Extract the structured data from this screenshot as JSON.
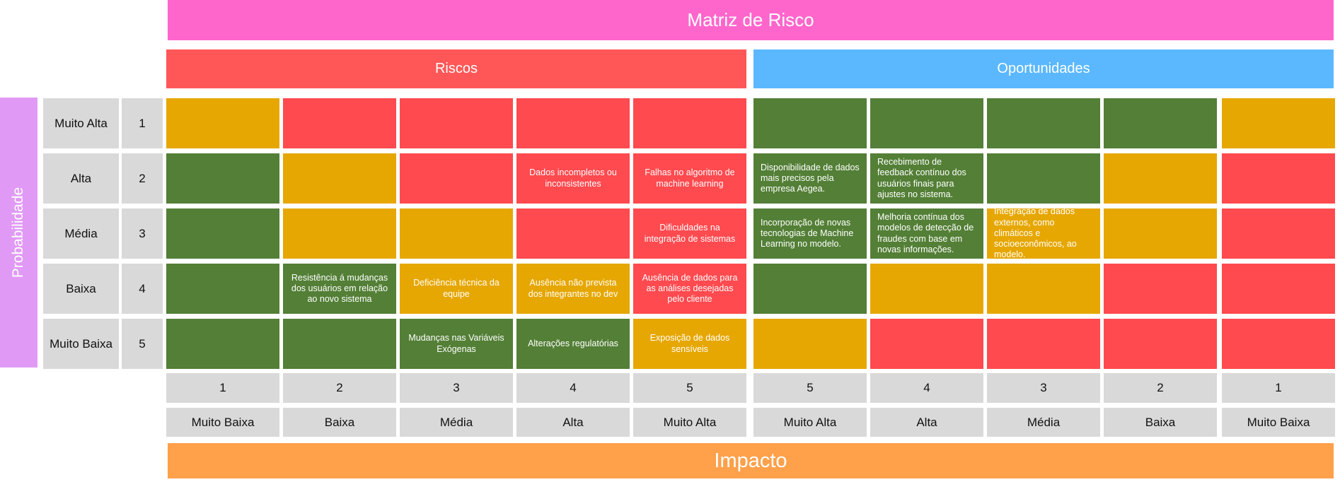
{
  "title": "Matriz de Risco",
  "sections": {
    "riscos": "Riscos",
    "oportunidades": "Oportunidades"
  },
  "axis": {
    "y_label": "Probabilidade",
    "x_label": "Impacto"
  },
  "probability_levels": [
    {
      "label": "Muito Alta",
      "number": "1"
    },
    {
      "label": "Alta",
      "number": "2"
    },
    {
      "label": "Média",
      "number": "3"
    },
    {
      "label": "Baixa",
      "number": "4"
    },
    {
      "label": "Muito Baixa",
      "number": "5"
    }
  ],
  "impact_columns": [
    {
      "number": "1",
      "label": "Muito Baixa"
    },
    {
      "number": "2",
      "label": "Baixa"
    },
    {
      "number": "3",
      "label": "Média"
    },
    {
      "number": "4",
      "label": "Alta"
    },
    {
      "number": "5",
      "label": "Muito Alta"
    },
    {
      "number": "5",
      "label": "Muito Alta"
    },
    {
      "number": "4",
      "label": "Alta"
    },
    {
      "number": "3",
      "label": "Média"
    },
    {
      "number": "2",
      "label": "Baixa"
    },
    {
      "number": "1",
      "label": "Muito Baixa"
    }
  ],
  "colors": {
    "title": "#ff66cc",
    "riscos": "#ff5757",
    "oportunidades": "#5bb8ff",
    "probabilidade": "#e09af5",
    "impacto": "#ffa04a",
    "header_gray": "#d9d9d9",
    "cell_green": "#537f36",
    "cell_yellow": "#e6a703",
    "cell_red": "#ff4a4f"
  },
  "grid": [
    [
      {
        "color": "yellow",
        "text": ""
      },
      {
        "color": "red",
        "text": ""
      },
      {
        "color": "red",
        "text": ""
      },
      {
        "color": "red",
        "text": ""
      },
      {
        "color": "red",
        "text": ""
      },
      {
        "color": "green",
        "text": ""
      },
      {
        "color": "green",
        "text": ""
      },
      {
        "color": "green",
        "text": ""
      },
      {
        "color": "green",
        "text": ""
      },
      {
        "color": "yellow",
        "text": ""
      }
    ],
    [
      {
        "color": "green",
        "text": ""
      },
      {
        "color": "yellow",
        "text": ""
      },
      {
        "color": "red",
        "text": ""
      },
      {
        "color": "red",
        "text": "Dados incompletos ou inconsistentes"
      },
      {
        "color": "red",
        "text": "Falhas no algoritmo de machine learning"
      },
      {
        "color": "green",
        "text": "Disponibilidade de dados mais precisos pela empresa Aegea."
      },
      {
        "color": "green",
        "text": "Recebimento de feedback contínuo dos usuários finais para ajustes no sistema."
      },
      {
        "color": "green",
        "text": ""
      },
      {
        "color": "yellow",
        "text": ""
      },
      {
        "color": "red",
        "text": ""
      }
    ],
    [
      {
        "color": "green",
        "text": ""
      },
      {
        "color": "yellow",
        "text": ""
      },
      {
        "color": "yellow",
        "text": ""
      },
      {
        "color": "red",
        "text": ""
      },
      {
        "color": "red",
        "text": "Dificuldades na integração de sistemas"
      },
      {
        "color": "green",
        "text": "Incorporação de novas tecnologias de Machine Learning no modelo."
      },
      {
        "color": "green",
        "text": "Melhoria contínua dos modelos de detecção de fraudes com base em novas informações."
      },
      {
        "color": "yellow",
        "text": "Integração de dados externos, como climáticos e socioeconômicos, ao modelo."
      },
      {
        "color": "yellow",
        "text": ""
      },
      {
        "color": "red",
        "text": ""
      }
    ],
    [
      {
        "color": "green",
        "text": ""
      },
      {
        "color": "green",
        "text": "Resistência á mudanças dos usuários em relação ao novo sistema"
      },
      {
        "color": "yellow",
        "text": "Deficiência técnica da equipe"
      },
      {
        "color": "yellow",
        "text": "Ausência não prevista dos integrantes no dev"
      },
      {
        "color": "red",
        "text": "Ausência de dados para as análises desejadas pelo cliente"
      },
      {
        "color": "green",
        "text": ""
      },
      {
        "color": "yellow",
        "text": ""
      },
      {
        "color": "yellow",
        "text": ""
      },
      {
        "color": "red",
        "text": ""
      },
      {
        "color": "red",
        "text": ""
      }
    ],
    [
      {
        "color": "green",
        "text": ""
      },
      {
        "color": "green",
        "text": ""
      },
      {
        "color": "green",
        "text": "Mudanças nas Variáveis Exógenas"
      },
      {
        "color": "green",
        "text": "Alterações regulatórias"
      },
      {
        "color": "yellow",
        "text": "Exposição de dados sensíveis"
      },
      {
        "color": "yellow",
        "text": ""
      },
      {
        "color": "red",
        "text": ""
      },
      {
        "color": "red",
        "text": ""
      },
      {
        "color": "red",
        "text": ""
      },
      {
        "color": "red",
        "text": ""
      }
    ]
  ]
}
